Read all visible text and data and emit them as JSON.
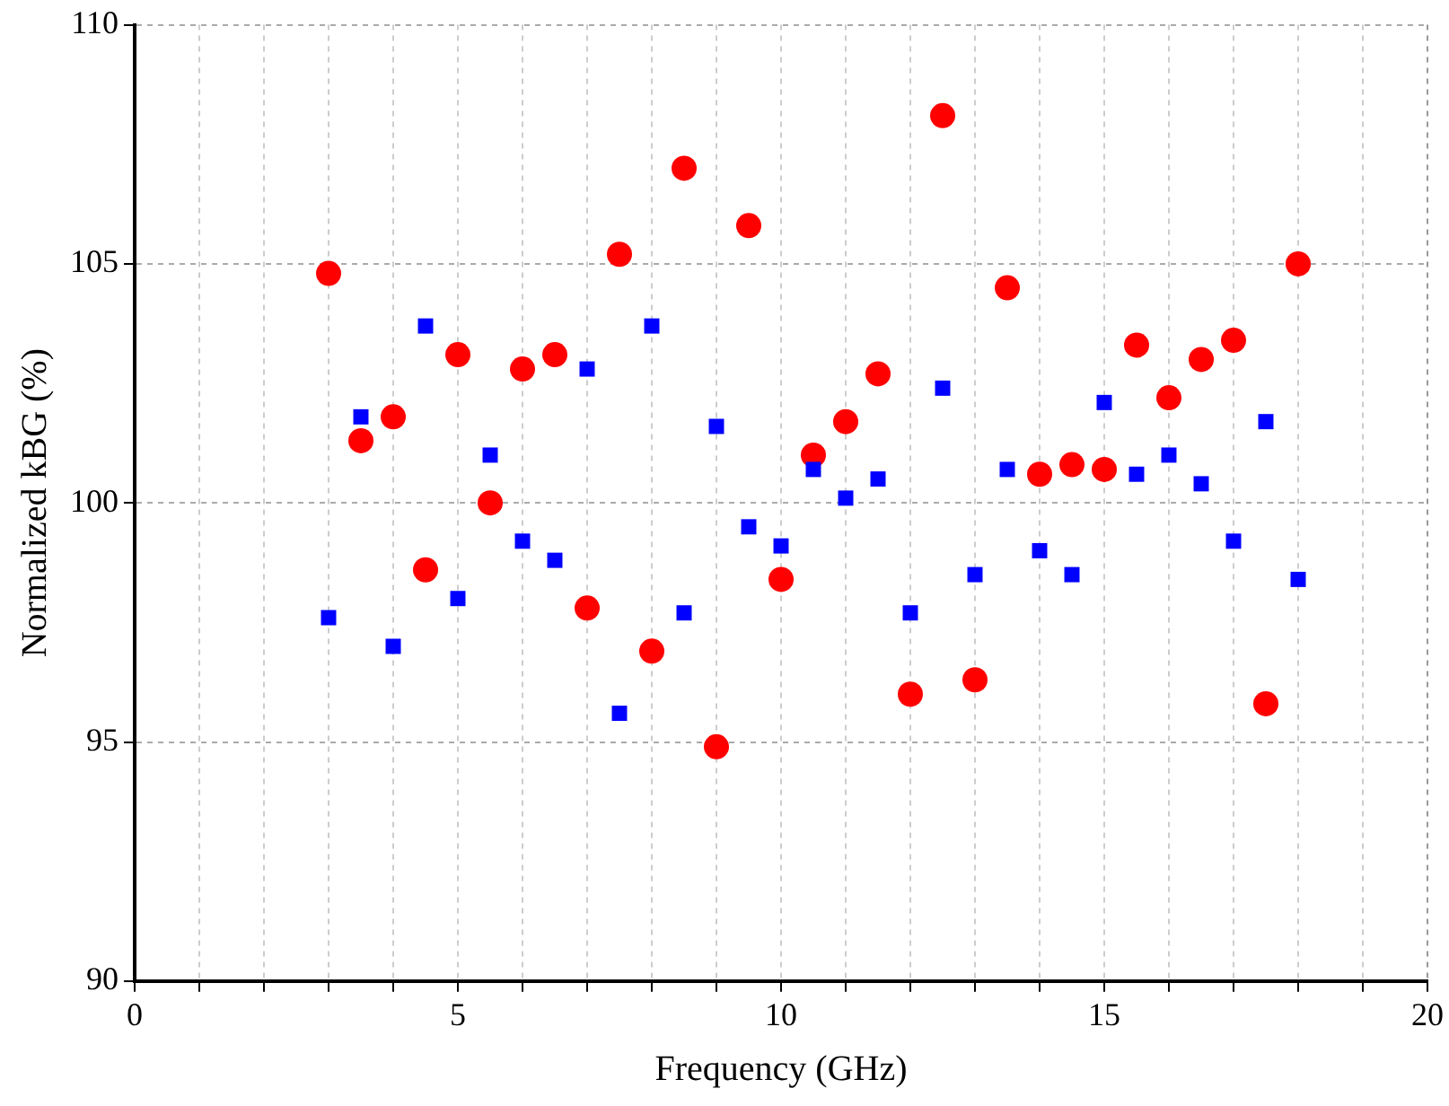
{
  "chart_data": {
    "type": "scatter",
    "xlabel": "Frequency (GHz)",
    "ylabel": "Normalized kBG (%)",
    "x": [
      3,
      3.5,
      4,
      4.5,
      5,
      5.5,
      6,
      6.5,
      7,
      7.5,
      8,
      8.5,
      9,
      9.5,
      10,
      10.5,
      11,
      11.5,
      12,
      12.5,
      13,
      13.5,
      14,
      14.5,
      15,
      15.5,
      16,
      16.5,
      17,
      17.5,
      18
    ],
    "series": [
      {
        "color": "#0000ff",
        "marker": "square",
        "values": [
          97.6,
          101.8,
          97.0,
          103.7,
          98.0,
          101.0,
          99.2,
          98.8,
          102.8,
          95.6,
          103.7,
          97.7,
          101.6,
          99.5,
          99.1,
          100.7,
          100.1,
          100.5,
          97.7,
          102.4,
          98.5,
          100.7,
          99.0,
          98.5,
          102.1,
          100.6,
          101.0,
          100.4,
          99.2,
          101.7,
          98.4
        ]
      },
      {
        "color": "#ff0000",
        "marker": "circle",
        "values": [
          104.8,
          101.3,
          101.8,
          98.6,
          103.1,
          100.0,
          102.8,
          103.1,
          97.8,
          105.2,
          96.9,
          107.0,
          94.9,
          105.8,
          98.4,
          101.0,
          101.7,
          102.7,
          96.0,
          108.1,
          96.3,
          104.5,
          100.6,
          100.8,
          100.7,
          103.3,
          102.2,
          103.0,
          103.4,
          95.8,
          105.0
        ]
      }
    ],
    "xlim": [
      0,
      20
    ],
    "xticks": [
      0,
      {
        "value": 1,
        "label": null
      },
      {
        "value": 2,
        "label": null
      },
      {
        "value": 3,
        "label": null
      },
      {
        "value": 4,
        "label": null
      },
      5,
      {
        "value": 6,
        "label": null
      },
      {
        "value": 7,
        "label": null
      },
      {
        "value": 8,
        "label": null
      },
      {
        "value": 9,
        "label": null
      },
      10,
      {
        "value": 11,
        "label": null
      },
      {
        "value": 12,
        "label": null
      },
      {
        "value": 13,
        "label": null
      },
      {
        "value": 14,
        "label": null
      },
      15,
      {
        "value": 16,
        "label": null
      },
      {
        "value": 17,
        "label": null
      },
      {
        "value": 18,
        "label": null
      },
      {
        "value": 19,
        "label": null
      },
      20
    ],
    "ylim": [
      90,
      110
    ],
    "yticks": [
      90,
      95,
      100,
      105,
      110
    ],
    "grid": true
  }
}
